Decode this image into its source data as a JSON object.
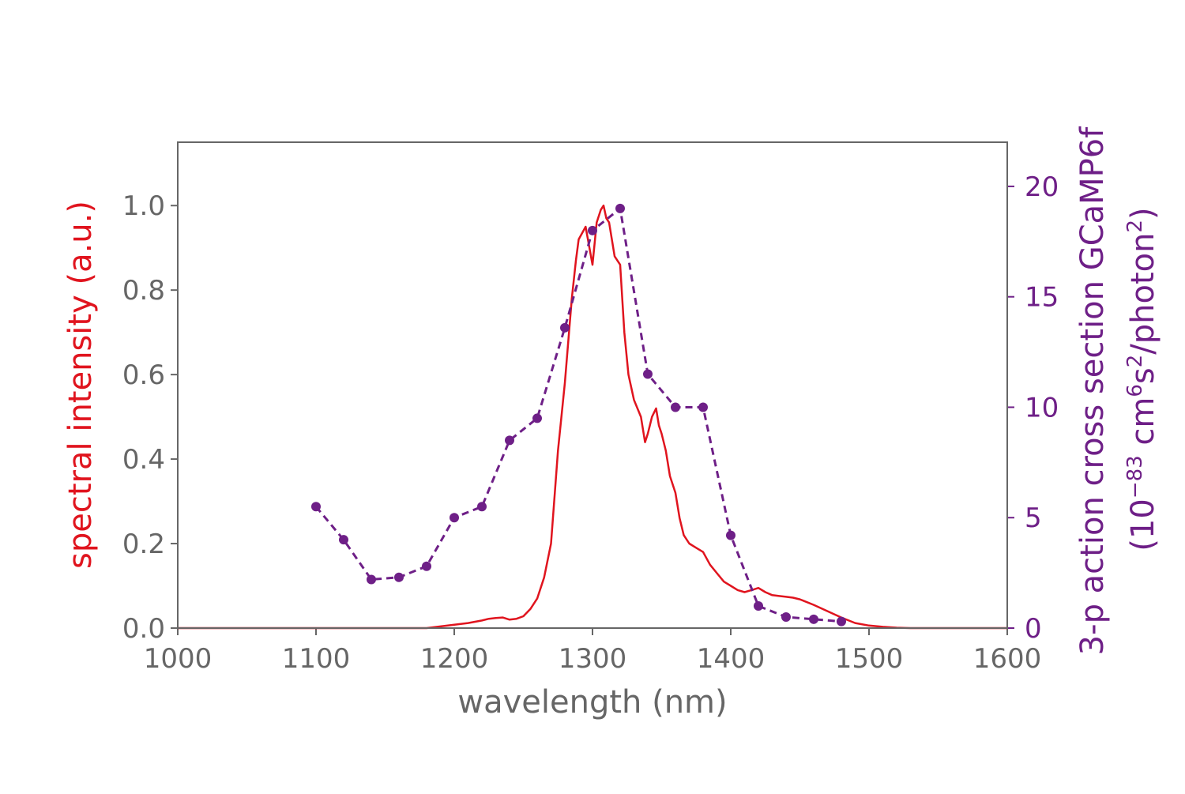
{
  "chart_data": {
    "type": "line",
    "xlabel": "wavelength (nm)",
    "xlim": [
      1000,
      1600
    ],
    "x_ticks": [
      "1000",
      "1100",
      "1200",
      "1300",
      "1400",
      "1500",
      "1600"
    ],
    "y_left": {
      "label": "spectral intensity (a.u.)",
      "range": [
        0,
        1.15
      ],
      "ticks": [
        "0.0",
        "0.2",
        "0.4",
        "0.6",
        "0.8",
        "1.0"
      ],
      "color": "#e0141e"
    },
    "y_right": {
      "label_line1": "3-p action cross section GCaMP6f",
      "label_line2_parts": [
        "(10",
        "−83",
        " cm",
        "6",
        "s",
        "2",
        "/photon",
        "2",
        ")"
      ],
      "range": [
        0,
        22
      ],
      "ticks": [
        "0",
        "5",
        "10",
        "15",
        "20"
      ],
      "color": "#6e1f87"
    },
    "series": [
      {
        "name": "spectral intensity",
        "axis": "left",
        "style": "solid",
        "color": "#e0141e",
        "x": [
          1000,
          1100,
          1180,
          1190,
          1200,
          1210,
          1220,
          1225,
          1230,
          1235,
          1240,
          1245,
          1250,
          1255,
          1260,
          1265,
          1270,
          1275,
          1280,
          1285,
          1288,
          1290,
          1295,
          1300,
          1303,
          1306,
          1308,
          1310,
          1312,
          1314,
          1316,
          1320,
          1323,
          1326,
          1330,
          1335,
          1338,
          1340,
          1343,
          1346,
          1348,
          1350,
          1353,
          1356,
          1360,
          1363,
          1366,
          1370,
          1375,
          1380,
          1385,
          1390,
          1395,
          1400,
          1405,
          1410,
          1415,
          1420,
          1425,
          1430,
          1435,
          1440,
          1445,
          1450,
          1460,
          1470,
          1480,
          1490,
          1500,
          1510,
          1520,
          1530,
          1600
        ],
        "y": [
          0,
          0,
          0,
          0.004,
          0.008,
          0.012,
          0.018,
          0.022,
          0.024,
          0.025,
          0.02,
          0.022,
          0.028,
          0.045,
          0.07,
          0.12,
          0.2,
          0.42,
          0.58,
          0.78,
          0.87,
          0.92,
          0.95,
          0.86,
          0.96,
          0.99,
          1.0,
          0.97,
          0.96,
          0.92,
          0.88,
          0.86,
          0.7,
          0.6,
          0.54,
          0.5,
          0.44,
          0.46,
          0.5,
          0.52,
          0.48,
          0.46,
          0.42,
          0.36,
          0.32,
          0.26,
          0.22,
          0.2,
          0.19,
          0.18,
          0.15,
          0.13,
          0.11,
          0.1,
          0.09,
          0.085,
          0.09,
          0.095,
          0.085,
          0.078,
          0.076,
          0.074,
          0.072,
          0.068,
          0.055,
          0.04,
          0.025,
          0.012,
          0.006,
          0.003,
          0.001,
          0,
          0
        ]
      },
      {
        "name": "3-p action cross section GCaMP6f",
        "axis": "right",
        "style": "dashed",
        "marker": "circle",
        "color": "#6e1f87",
        "x": [
          1100,
          1120,
          1140,
          1160,
          1180,
          1200,
          1220,
          1240,
          1260,
          1280,
          1300,
          1320,
          1340,
          1360,
          1380,
          1400,
          1420,
          1440,
          1460,
          1480
        ],
        "y": [
          5.5,
          4.0,
          2.2,
          2.3,
          2.8,
          5.0,
          5.5,
          8.5,
          9.5,
          13.6,
          18.0,
          19.0,
          11.5,
          10.0,
          10.0,
          4.2,
          1.0,
          0.5,
          0.4,
          0.3
        ]
      }
    ]
  }
}
